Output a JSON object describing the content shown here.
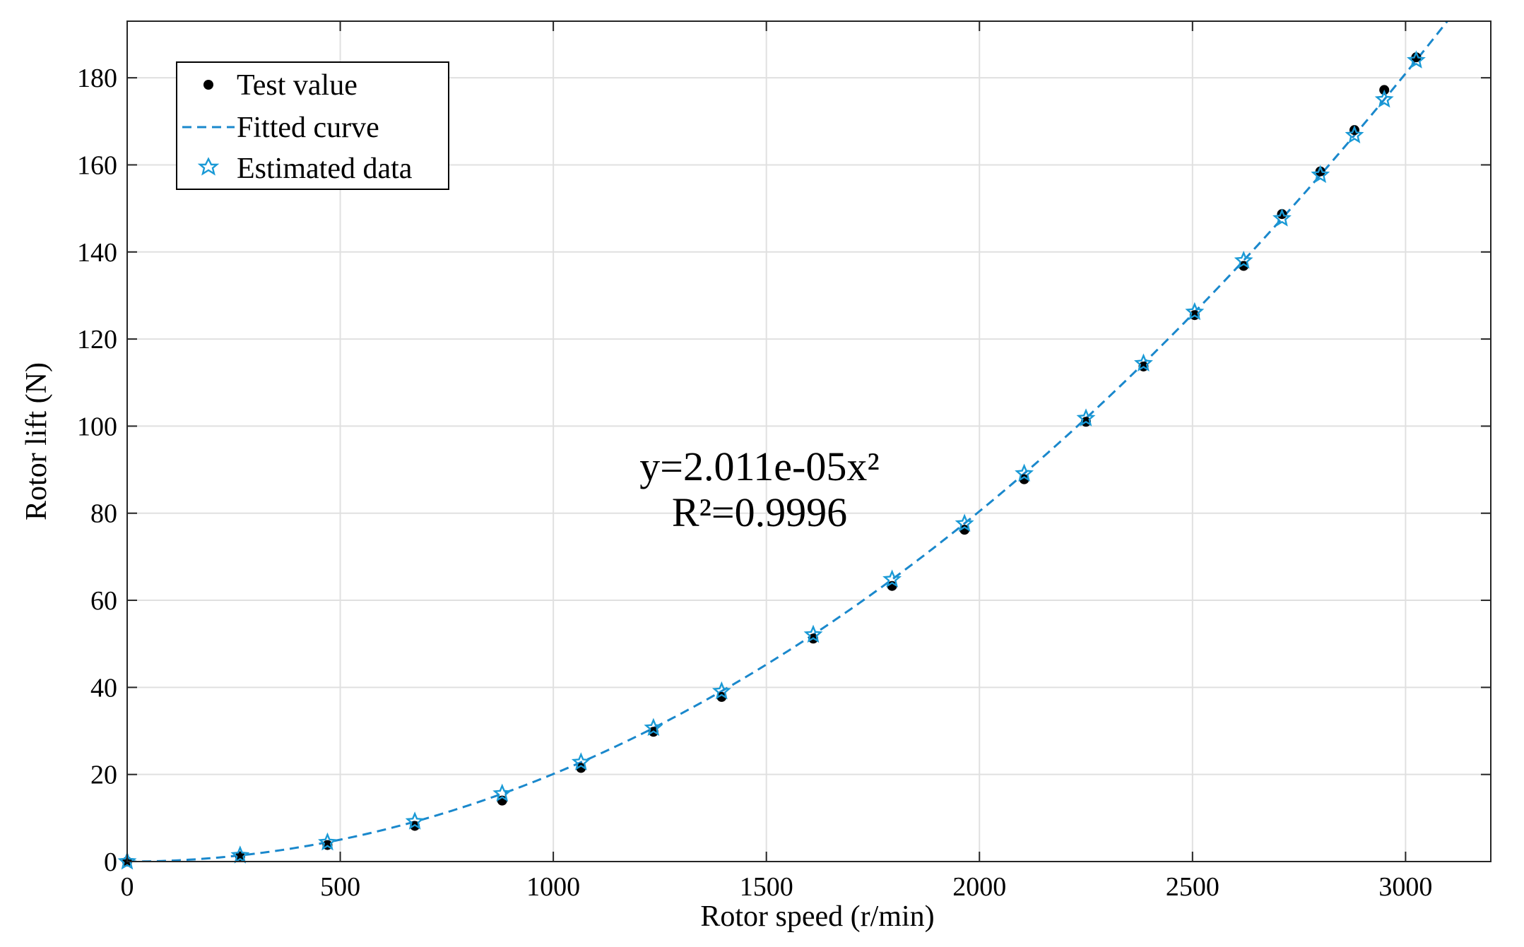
{
  "chart_data": {
    "type": "scatter",
    "title": "",
    "xlabel": "Rotor speed (r/min)",
    "ylabel": "Rotor lift (N)",
    "xlim": [
      0,
      3200
    ],
    "ylim": [
      0,
      193
    ],
    "xticks": [
      0,
      500,
      1000,
      1500,
      2000,
      2500,
      3000
    ],
    "yticks": [
      0,
      20,
      40,
      60,
      80,
      100,
      120,
      140,
      160,
      180
    ],
    "grid": true,
    "legend_position": "top-left",
    "colors": {
      "test": "#000000",
      "fit": "#1a88cc",
      "estimated": "#1a9ad6"
    },
    "series": [
      {
        "name": "Test value",
        "kind": "points",
        "x": [
          0,
          265,
          470,
          675,
          880,
          1065,
          1235,
          1395,
          1610,
          1795,
          1965,
          2105,
          2250,
          2385,
          2505,
          2620,
          2710,
          2800,
          2880,
          2950,
          3025
        ],
        "y": [
          0,
          1.2,
          3.8,
          8.2,
          14.0,
          21.5,
          29.8,
          37.8,
          51.2,
          63.3,
          76.2,
          87.8,
          101.0,
          113.7,
          125.5,
          136.8,
          148.7,
          158.5,
          168.0,
          177.2,
          184.7
        ]
      },
      {
        "name": "Fitted curve",
        "kind": "curve",
        "coefficient": 2.011e-05,
        "x_range": [
          0,
          3200
        ]
      },
      {
        "name": "Estimated data",
        "kind": "stars",
        "x": [
          0,
          265,
          470,
          675,
          880,
          1065,
          1235,
          1395,
          1610,
          1795,
          1965,
          2105,
          2250,
          2385,
          2505,
          2620,
          2710,
          2800,
          2880,
          2950,
          3025
        ],
        "y": [
          0,
          1.4,
          4.4,
          9.2,
          15.6,
          22.8,
          30.7,
          39.1,
          52.1,
          64.8,
          77.6,
          89.1,
          101.8,
          114.4,
          126.2,
          138.0,
          147.7,
          157.7,
          166.8,
          175.0,
          184.0
        ]
      }
    ],
    "annotations": [
      "y=2.011e-05x²",
      "R²=0.9996"
    ]
  }
}
